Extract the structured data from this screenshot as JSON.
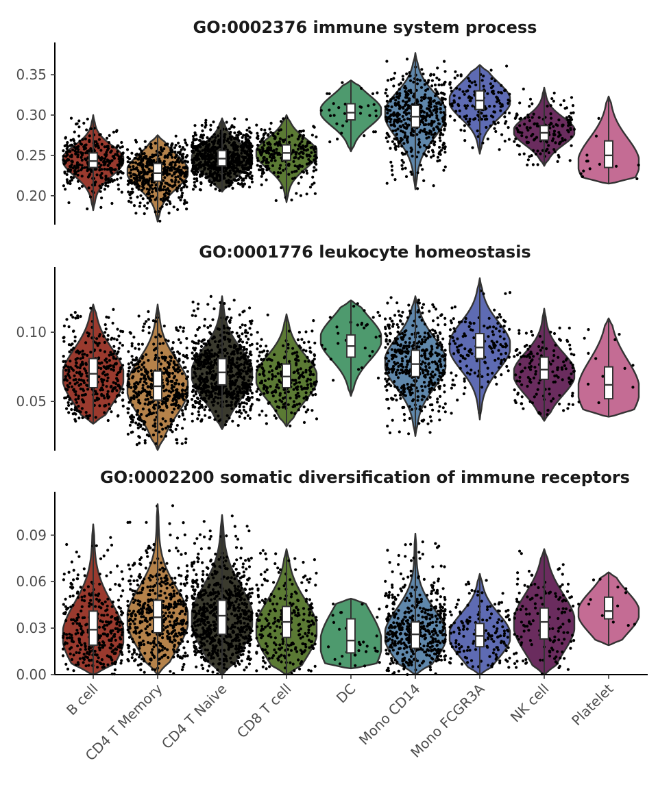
{
  "chart_data": {
    "type": "violin",
    "categories": [
      "B cell",
      "CD4 T Memory",
      "CD4 T Naive",
      "CD8 T cell",
      "DC",
      "Mono CD14",
      "Mono FCGR3A",
      "NK cell",
      "Platelet"
    ],
    "colors": [
      "#9a3a2e",
      "#b5824a",
      "#3a3a2e",
      "#5b7a34",
      "#4e9a6e",
      "#5f87ab",
      "#5e6bb3",
      "#6a2c5e",
      "#c46c94"
    ],
    "cell_counts": [
      340,
      480,
      700,
      270,
      32,
      480,
      160,
      150,
      14
    ],
    "panels": [
      {
        "title": "GO:0002376 immune system process",
        "ylim": [
          0.165,
          0.39
        ],
        "yticks": [
          0.2,
          0.25,
          0.3,
          0.35
        ],
        "ytick_labels": [
          "0.20",
          "0.25",
          "0.30",
          "0.35"
        ],
        "show_x_axis": false,
        "series": [
          {
            "min": 0.182,
            "q1": 0.235,
            "median": 0.243,
            "q3": 0.253,
            "max": 0.3,
            "mode": 0.245
          },
          {
            "min": 0.168,
            "q1": 0.218,
            "median": 0.228,
            "q3": 0.24,
            "max": 0.275,
            "mode": 0.23
          },
          {
            "min": 0.205,
            "q1": 0.237,
            "median": 0.246,
            "q3": 0.256,
            "max": 0.296,
            "mode": 0.246
          },
          {
            "min": 0.192,
            "q1": 0.244,
            "median": 0.253,
            "q3": 0.263,
            "max": 0.3,
            "mode": 0.253
          },
          {
            "min": 0.255,
            "q1": 0.294,
            "median": 0.303,
            "q3": 0.314,
            "max": 0.343,
            "mode": 0.305
          },
          {
            "min": 0.208,
            "q1": 0.285,
            "median": 0.298,
            "q3": 0.312,
            "max": 0.377,
            "mode": 0.302
          },
          {
            "min": 0.252,
            "q1": 0.307,
            "median": 0.318,
            "q3": 0.33,
            "max": 0.362,
            "mode": 0.318
          },
          {
            "min": 0.237,
            "q1": 0.269,
            "median": 0.278,
            "q3": 0.287,
            "max": 0.334,
            "mode": 0.28
          },
          {
            "min": 0.215,
            "q1": 0.235,
            "median": 0.25,
            "q3": 0.268,
            "max": 0.323,
            "mode": 0.24
          }
        ]
      },
      {
        "title": "GO:0001776 leukocyte homeostasis",
        "ylim": [
          0.015,
          0.147
        ],
        "yticks": [
          0.05,
          0.1
        ],
        "ytick_labels": [
          "0.05",
          "0.10"
        ],
        "show_x_axis": false,
        "series": [
          {
            "min": 0.034,
            "q1": 0.06,
            "median": 0.07,
            "q3": 0.081,
            "max": 0.12,
            "mode": 0.068
          },
          {
            "min": 0.015,
            "q1": 0.051,
            "median": 0.061,
            "q3": 0.072,
            "max": 0.12,
            "mode": 0.06
          },
          {
            "min": 0.03,
            "q1": 0.062,
            "median": 0.071,
            "q3": 0.081,
            "max": 0.126,
            "mode": 0.07
          },
          {
            "min": 0.032,
            "q1": 0.06,
            "median": 0.068,
            "q3": 0.077,
            "max": 0.113,
            "mode": 0.067
          },
          {
            "min": 0.054,
            "q1": 0.082,
            "median": 0.09,
            "q3": 0.098,
            "max": 0.123,
            "mode": 0.095
          },
          {
            "min": 0.025,
            "q1": 0.068,
            "median": 0.077,
            "q3": 0.087,
            "max": 0.126,
            "mode": 0.078
          },
          {
            "min": 0.037,
            "q1": 0.081,
            "median": 0.089,
            "q3": 0.099,
            "max": 0.139,
            "mode": 0.09
          },
          {
            "min": 0.036,
            "q1": 0.066,
            "median": 0.073,
            "q3": 0.082,
            "max": 0.117,
            "mode": 0.07
          },
          {
            "min": 0.039,
            "q1": 0.052,
            "median": 0.062,
            "q3": 0.075,
            "max": 0.11,
            "mode": 0.058
          }
        ]
      },
      {
        "title": "GO:0002200 somatic diversification of immune receptors",
        "ylim": [
          0.0,
          0.118
        ],
        "yticks": [
          0.0,
          0.03,
          0.06,
          0.09
        ],
        "ytick_labels": [
          "0.00",
          "0.03",
          "0.06",
          "0.09"
        ],
        "show_x_axis": true,
        "series": [
          {
            "min": 0.0,
            "q1": 0.019,
            "median": 0.029,
            "q3": 0.041,
            "max": 0.097,
            "mode": 0.025
          },
          {
            "min": 0.0,
            "q1": 0.027,
            "median": 0.037,
            "q3": 0.048,
            "max": 0.11,
            "mode": 0.036
          },
          {
            "min": 0.0,
            "q1": 0.026,
            "median": 0.038,
            "q3": 0.048,
            "max": 0.103,
            "mode": 0.036
          },
          {
            "min": 0.0,
            "q1": 0.024,
            "median": 0.034,
            "q3": 0.044,
            "max": 0.081,
            "mode": 0.029
          },
          {
            "min": 0.004,
            "q1": 0.014,
            "median": 0.022,
            "q3": 0.036,
            "max": 0.049,
            "mode": 0.02
          },
          {
            "min": 0.0,
            "q1": 0.017,
            "median": 0.026,
            "q3": 0.034,
            "max": 0.091,
            "mode": 0.025
          },
          {
            "min": 0.0,
            "q1": 0.018,
            "median": 0.025,
            "q3": 0.033,
            "max": 0.065,
            "mode": 0.025
          },
          {
            "min": 0.0,
            "q1": 0.023,
            "median": 0.034,
            "q3": 0.043,
            "max": 0.081,
            "mode": 0.033
          },
          {
            "min": 0.019,
            "q1": 0.036,
            "median": 0.041,
            "q3": 0.05,
            "max": 0.066,
            "mode": 0.04
          }
        ]
      }
    ]
  }
}
